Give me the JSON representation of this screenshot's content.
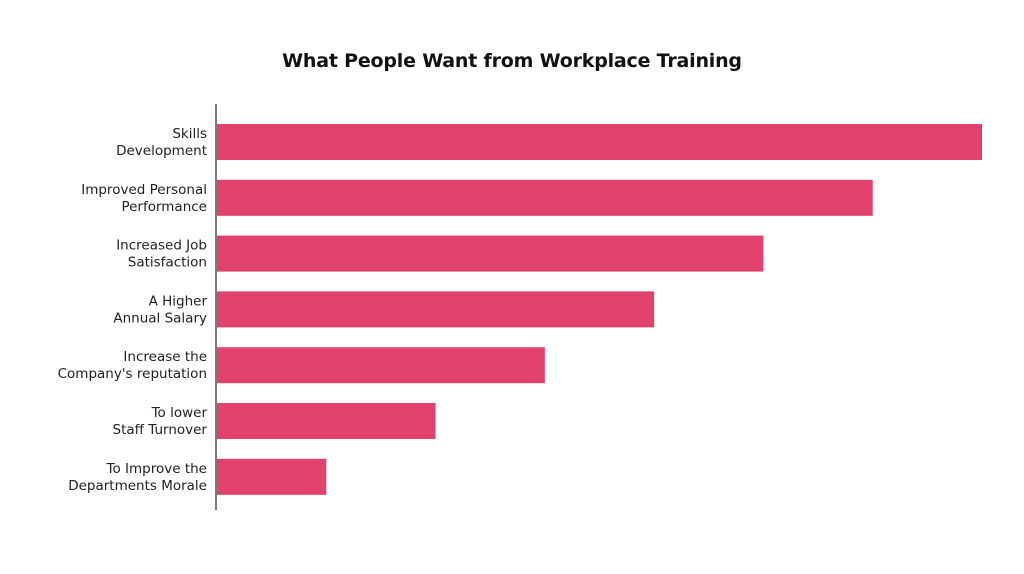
{
  "chart_data": {
    "type": "bar",
    "orientation": "horizontal",
    "title": "What People Want from Workplace Training",
    "xlabel": "",
    "ylabel": "",
    "categories": [
      [
        "Skills",
        "Development"
      ],
      [
        "Improved Personal",
        "Performance"
      ],
      [
        "Increased Job",
        "Satisfaction"
      ],
      [
        "A Higher",
        "Annual Salary"
      ],
      [
        "Increase the",
        "Company's reputation"
      ],
      [
        "To lower",
        "Staff Turnover"
      ],
      [
        "To Improve the",
        "Departments Morale"
      ]
    ],
    "values": [
      7,
      6,
      5,
      4,
      3,
      2,
      1
    ],
    "xlim": [
      0,
      7
    ],
    "grid": false,
    "bar_color": "#E0416D"
  }
}
